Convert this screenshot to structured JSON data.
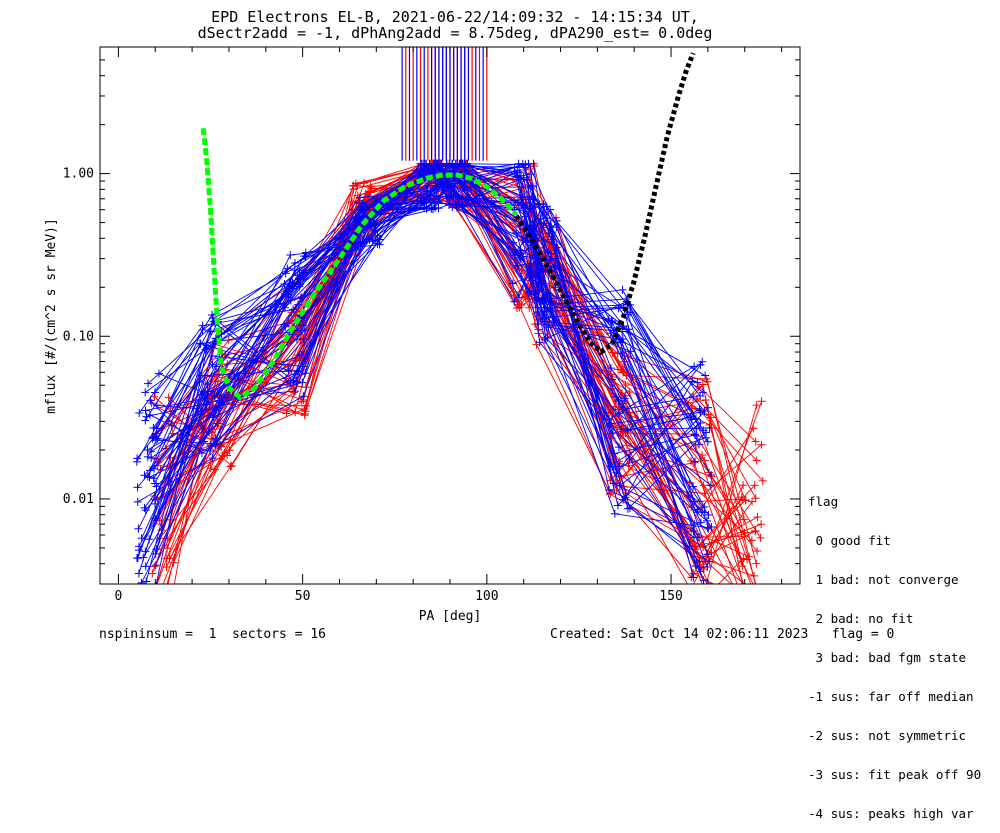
{
  "header": {
    "title_line1": "EPD Electrons EL-B, 2021-06-22/14:09:32 - 14:15:34 UT,",
    "title_line2": "dSectr2add = -1, dPhAng2add = 8.75deg, dPA290_est=   0.0deg"
  },
  "footer": {
    "left": "nspininsum =  1  sectors = 16",
    "right": "Created: Sat Oct 14 02:06:11 2023   flag = 0"
  },
  "legend": {
    "title": "flag",
    "items": [
      " 0 good fit",
      " 1 bad: not converge",
      " 2 bad: no fit",
      " 3 bad: bad fgm state",
      "-1 sus: far off median",
      "-2 sus: not symmetric",
      "-3 sus: fit peak off 90",
      "-4 sus: peaks high var"
    ]
  },
  "colors": {
    "red_series": "#ff0000",
    "blue_series": "#0000ff",
    "green_fit": "#00ff00",
    "black_fit": "#000000",
    "axes": "#000000"
  },
  "chart_data": {
    "type": "line",
    "xlabel": "PA [deg]",
    "ylabel": "mflux [#/(cm^2 s sr MeV)]",
    "xlim": [
      -5,
      185
    ],
    "ylim": [
      0.003,
      6.0
    ],
    "yscale": "log",
    "xticks": [
      0,
      50,
      100,
      150
    ],
    "xtick_labels": [
      "0",
      "50",
      "100",
      "150"
    ],
    "yticks": [
      0.01,
      0.1,
      1.0
    ],
    "ytick_labels": [
      "0.01",
      "0.10",
      "1.00"
    ],
    "grid": false,
    "series": [
      {
        "color": "red",
        "representative_x": [
          12,
          28,
          48,
          66,
          85,
          92,
          110,
          116,
          136,
          158,
          172
        ],
        "representative_y": [
          0.01,
          0.04,
          0.09,
          0.6,
          1.0,
          0.95,
          0.4,
          0.2,
          0.03,
          0.012,
          0.008
        ]
      },
      {
        "color": "blue",
        "representative_x": [
          8,
          25,
          48,
          68,
          85,
          92,
          110,
          116,
          136,
          158
        ],
        "representative_y": [
          0.012,
          0.05,
          0.12,
          0.5,
          0.9,
          0.9,
          0.45,
          0.25,
          0.04,
          0.015
        ]
      },
      {
        "color": "green",
        "style": "dashed",
        "x": [
          23,
          24,
          25,
          26,
          27,
          28,
          30,
          33,
          37,
          42,
          47,
          53,
          60,
          66,
          72,
          78,
          84,
          88,
          92,
          96,
          100,
          104,
          108
        ],
        "y": [
          1.9,
          1.2,
          0.6,
          0.25,
          0.11,
          0.065,
          0.048,
          0.042,
          0.048,
          0.07,
          0.11,
          0.18,
          0.3,
          0.48,
          0.68,
          0.84,
          0.94,
          0.98,
          0.98,
          0.93,
          0.83,
          0.7,
          0.56
        ]
      },
      {
        "color": "black",
        "style": "dotted",
        "x": [
          108,
          112,
          116,
          120,
          124,
          128,
          131,
          134,
          137,
          140,
          143,
          146,
          149,
          152,
          154,
          156
        ],
        "y": [
          0.55,
          0.4,
          0.28,
          0.19,
          0.13,
          0.092,
          0.08,
          0.09,
          0.13,
          0.22,
          0.42,
          0.85,
          1.7,
          3.0,
          4.2,
          5.5
        ]
      }
    ],
    "vertical_marks": {
      "y_range": [
        1.2,
        6.0
      ],
      "red_x": [
        78,
        80,
        82,
        84,
        85,
        86,
        87,
        88,
        89,
        90,
        91,
        92,
        93,
        94,
        96,
        98,
        100
      ],
      "blue_x": [
        77,
        79,
        81,
        83,
        85,
        86,
        87,
        88,
        89,
        90,
        91,
        92,
        93,
        94,
        95,
        97,
        99
      ]
    }
  }
}
